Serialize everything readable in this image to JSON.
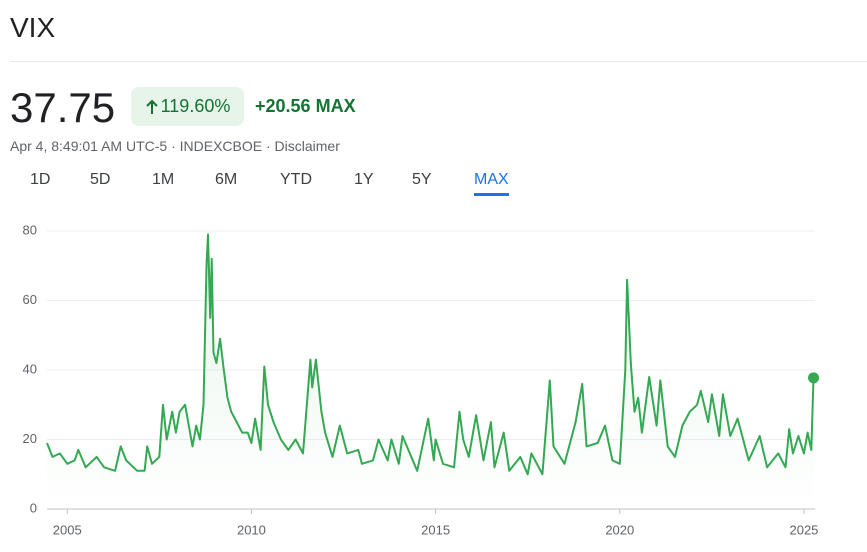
{
  "header": {
    "title": "VIX",
    "price": "37.75",
    "change_percent": "119.60%",
    "change": "+20.56",
    "range": "MAX",
    "meta": "Apr 4, 8:49:01 AM UTC-5 · INDEXCBOE · Disclaimer"
  },
  "tabs": [
    "1D",
    "5D",
    "1M",
    "6M",
    "YTD",
    "1Y",
    "5Y",
    "MAX"
  ],
  "active_tab": 7,
  "chart_data": {
    "type": "line",
    "color": "#34a853",
    "x": [
      2004.45,
      2004.6,
      2004.8,
      2005.0,
      2005.2,
      2005.3,
      2005.5,
      2005.8,
      2006.0,
      2006.3,
      2006.45,
      2006.6,
      2006.9,
      2007.1,
      2007.17,
      2007.3,
      2007.5,
      2007.6,
      2007.7,
      2007.85,
      2007.95,
      2008.05,
      2008.2,
      2008.4,
      2008.5,
      2008.6,
      2008.7,
      2008.78,
      2008.82,
      2008.88,
      2008.92,
      2008.97,
      2009.05,
      2009.15,
      2009.25,
      2009.35,
      2009.45,
      2009.6,
      2009.75,
      2009.9,
      2010.0,
      2010.1,
      2010.25,
      2010.35,
      2010.45,
      2010.6,
      2010.8,
      2011.0,
      2011.2,
      2011.4,
      2011.6,
      2011.65,
      2011.75,
      2011.9,
      2012.0,
      2012.2,
      2012.4,
      2012.6,
      2012.9,
      2013.0,
      2013.3,
      2013.45,
      2013.7,
      2013.8,
      2014.0,
      2014.1,
      2014.5,
      2014.8,
      2014.95,
      2015.0,
      2015.2,
      2015.5,
      2015.65,
      2015.75,
      2015.9,
      2016.1,
      2016.3,
      2016.5,
      2016.6,
      2016.85,
      2017.0,
      2017.3,
      2017.5,
      2017.6,
      2017.9,
      2018.1,
      2018.2,
      2018.5,
      2018.8,
      2018.98,
      2019.1,
      2019.4,
      2019.6,
      2019.8,
      2020.0,
      2020.15,
      2020.2,
      2020.3,
      2020.4,
      2020.5,
      2020.6,
      2020.8,
      2021.0,
      2021.1,
      2021.3,
      2021.5,
      2021.7,
      2021.9,
      2022.1,
      2022.2,
      2022.4,
      2022.5,
      2022.7,
      2022.8,
      2023.0,
      2023.2,
      2023.5,
      2023.8,
      2024.0,
      2024.3,
      2024.5,
      2024.6,
      2024.7,
      2024.85,
      2025.0,
      2025.1,
      2025.2,
      2025.26
    ],
    "values": [
      19,
      15,
      16,
      13,
      14,
      17,
      12,
      15,
      12,
      11,
      18,
      14,
      11,
      11,
      18,
      13,
      15,
      30,
      20,
      28,
      22,
      28,
      30,
      18,
      24,
      20,
      30,
      70,
      79,
      55,
      72,
      45,
      42,
      49,
      40,
      32,
      28,
      25,
      22,
      22,
      19,
      26,
      17,
      41,
      30,
      25,
      20,
      17,
      20,
      16,
      43,
      35,
      43,
      28,
      22,
      15,
      24,
      16,
      17,
      13,
      14,
      20,
      14,
      20,
      13,
      21,
      11,
      26,
      14,
      20,
      13,
      12,
      28,
      20,
      15,
      27,
      14,
      25,
      12,
      22,
      11,
      15,
      10,
      16,
      10,
      37,
      18,
      13,
      25,
      36,
      18,
      19,
      24,
      14,
      13,
      40,
      66,
      42,
      28,
      32,
      22,
      38,
      24,
      37,
      18,
      15,
      24,
      28,
      30,
      34,
      25,
      33,
      21,
      33,
      21,
      26,
      14,
      21,
      12,
      16,
      12,
      23,
      16,
      21,
      16,
      22,
      17,
      37.75
    ],
    "xlim": [
      2004.45,
      2025.3
    ],
    "xticks": [
      2005,
      2010,
      2015,
      2020,
      2025
    ],
    "ylim": [
      0,
      80
    ],
    "yticks": [
      0,
      20,
      40,
      60,
      80
    ],
    "grid": true
  }
}
